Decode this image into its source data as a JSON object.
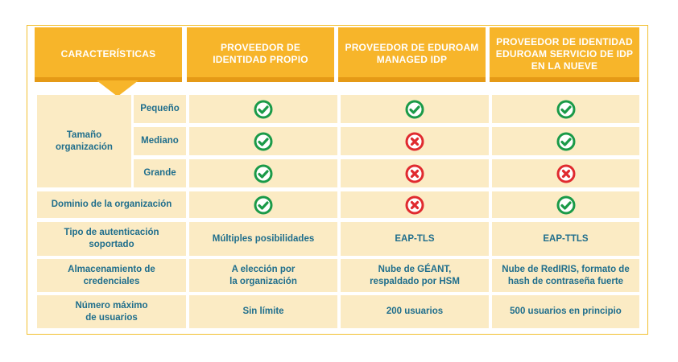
{
  "headers": [
    "CARACTERÍSTICAS",
    "PROVEEDOR DE\nIDENTIDAD PROPIO",
    "PROVEEDOR DE EDUROAM\nMANAGED IDP",
    "PROVEEDOR DE IDENTIDAD\nEDUROAM SERVICIO DE IDP\nEN LA NUEVE"
  ],
  "size_group_label": "Tamaño\norganización",
  "size_rows": [
    {
      "label": "Pequeño",
      "values": [
        "yes",
        "yes",
        "yes"
      ]
    },
    {
      "label": "Mediano",
      "values": [
        "yes",
        "no",
        "yes"
      ]
    },
    {
      "label": "Grande",
      "values": [
        "yes",
        "no",
        "no"
      ]
    }
  ],
  "domain_row": {
    "label": "Dominio de la organización",
    "values": [
      "yes",
      "no",
      "yes"
    ]
  },
  "text_rows": [
    {
      "label": "Tipo de autenticación\nsoportado",
      "values": [
        "Múltiples posibilidades",
        "EAP-TLS",
        "EAP-TTLS"
      ]
    },
    {
      "label": "Almacenamiento de\ncredenciales",
      "values": [
        "A elección por\nla organización",
        "Nube de GÉANT,\nrespaldado por HSM",
        "Nube de RedIRIS, formato de\nhash de contraseña fuerte"
      ]
    },
    {
      "label": "Número máximo\nde usuarios",
      "values": [
        "Sin límite",
        "200 usuarios",
        "500 usuarios en principio"
      ]
    }
  ],
  "colors": {
    "header": "#f7b52a",
    "header_shadow": "#e59a16",
    "cell_bg": "#fbebc4",
    "text": "#1f6e8c",
    "check": "#1a9a48",
    "cross": "#e02a2f"
  },
  "icons": {
    "yes": "check-circle-icon",
    "no": "cross-circle-icon"
  }
}
